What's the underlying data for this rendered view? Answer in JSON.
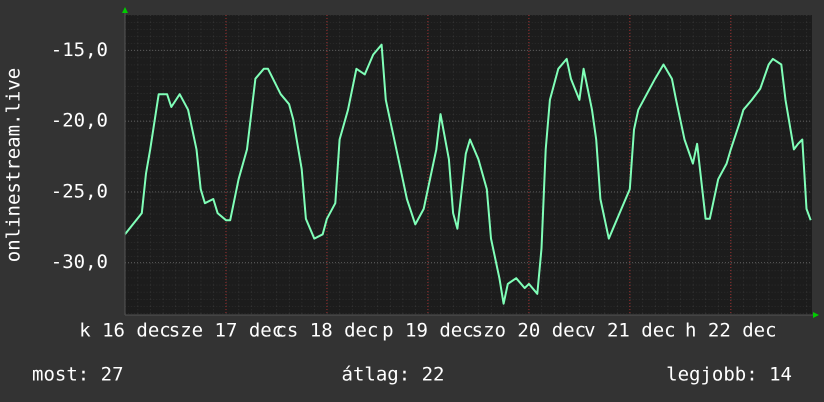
{
  "chart_data": {
    "type": "line",
    "ylabel": "onlinestream.live",
    "x": [
      0,
      4,
      5,
      6,
      8,
      10,
      11,
      13,
      15,
      17,
      18,
      19,
      21,
      22,
      24,
      25,
      27,
      29,
      31,
      33,
      34,
      37,
      39,
      40,
      42,
      43,
      45,
      47,
      48,
      50,
      51,
      53,
      55,
      57,
      59,
      61,
      62,
      63,
      65,
      67,
      69,
      71,
      72,
      74,
      75,
      77,
      78,
      79,
      81,
      82,
      84,
      86,
      87,
      89,
      90,
      91,
      93,
      95,
      96,
      98,
      99,
      100,
      101,
      103,
      105,
      106,
      108,
      109,
      111,
      112,
      113,
      115,
      116,
      118,
      120,
      121,
      122,
      124,
      126,
      128,
      130,
      131,
      133,
      135,
      136,
      138,
      139,
      141,
      143,
      144,
      146,
      147,
      149,
      151,
      153,
      154,
      156,
      157,
      159,
      160,
      161,
      162,
      163
    ],
    "series": [
      {
        "name": "onlinestream.live",
        "color": "#80ffb8",
        "values": [
          -28.0,
          -26.5,
          -23.7,
          -22.0,
          -18.1,
          -18.1,
          -19.0,
          -18.1,
          -19.2,
          -22.0,
          -24.8,
          -25.8,
          -25.5,
          -26.5,
          -27.0,
          -27.0,
          -24.1,
          -22.0,
          -17.0,
          -16.3,
          -16.3,
          -18.1,
          -18.8,
          -19.9,
          -23.4,
          -26.9,
          -28.3,
          -28.0,
          -26.9,
          -25.8,
          -21.3,
          -19.2,
          -16.3,
          -16.7,
          -15.3,
          -14.6,
          -18.5,
          -19.9,
          -22.7,
          -25.5,
          -27.3,
          -26.2,
          -24.8,
          -22.0,
          -19.5,
          -22.7,
          -26.5,
          -27.6,
          -22.3,
          -21.3,
          -22.7,
          -24.8,
          -28.3,
          -31.1,
          -32.9,
          -31.5,
          -31.1,
          -31.8,
          -31.5,
          -32.2,
          -29.0,
          -22.0,
          -18.5,
          -16.3,
          -15.6,
          -17.0,
          -18.5,
          -16.3,
          -19.2,
          -21.3,
          -25.5,
          -28.3,
          -27.6,
          -26.2,
          -24.8,
          -20.6,
          -19.2,
          -18.1,
          -17.0,
          -16.0,
          -17.0,
          -18.5,
          -21.3,
          -23.0,
          -21.6,
          -26.9,
          -26.9,
          -24.1,
          -23.0,
          -22.0,
          -20.2,
          -19.2,
          -18.5,
          -17.7,
          -16.0,
          -15.6,
          -16.0,
          -18.5,
          -22.0,
          -21.6,
          -21.3,
          -26.2,
          -27.0
        ]
      }
    ],
    "xlim": [
      0,
      163.3
    ],
    "xticks": [
      {
        "value": 0,
        "label": "k 16 dec"
      },
      {
        "value": 24,
        "label": "sze 17 dec"
      },
      {
        "value": 48,
        "label": "cs 18 dec"
      },
      {
        "value": 72,
        "label": "p 19 dec"
      },
      {
        "value": 96,
        "label": "szo 20 dec"
      },
      {
        "value": 120,
        "label": "v 21 dec"
      },
      {
        "value": 144,
        "label": "h 22 dec"
      }
    ],
    "ylim": [
      -33.7,
      -12.5
    ],
    "yticks": [
      {
        "value": -15,
        "label": "-15,0"
      },
      {
        "value": -20,
        "label": "-20,0"
      },
      {
        "value": -25,
        "label": "-25,0"
      },
      {
        "value": -30,
        "label": "-30,0"
      }
    ],
    "grid": true,
    "stats": [
      "most: 27",
      "átlag: 22",
      "legjobb: 14"
    ]
  }
}
